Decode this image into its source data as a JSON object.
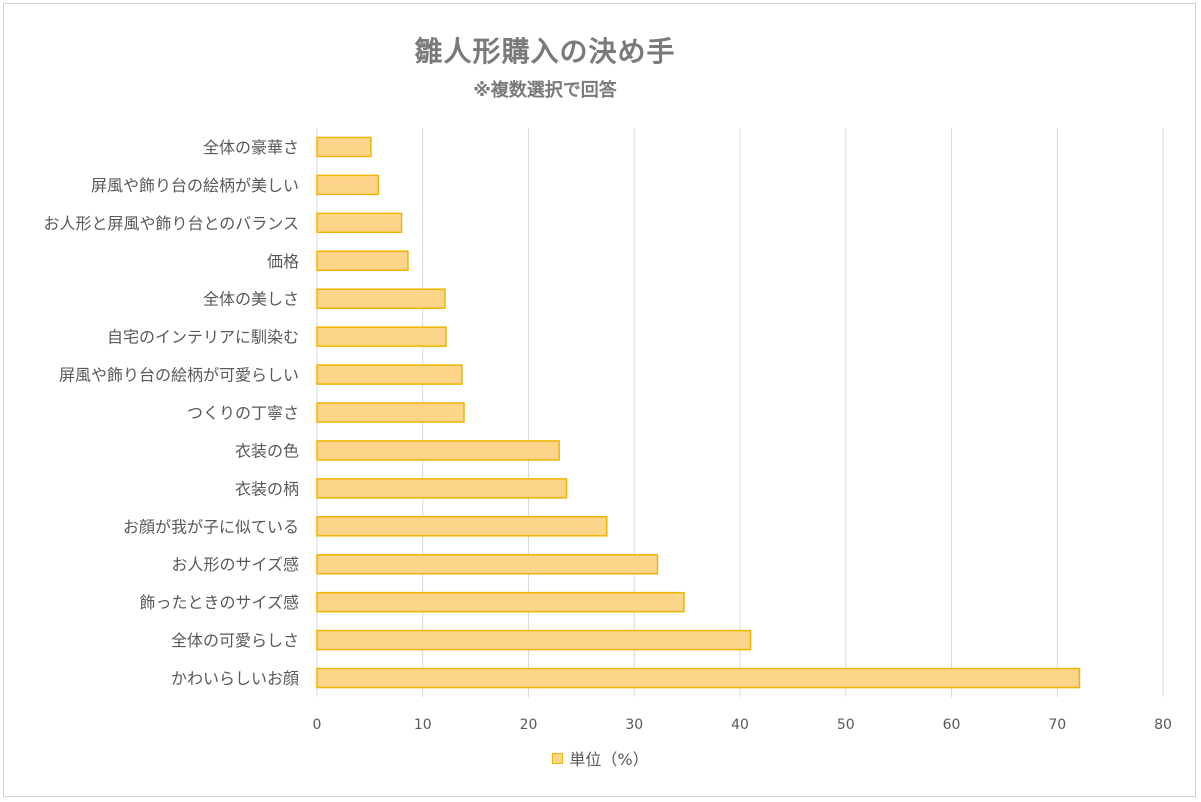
{
  "chart_data": {
    "type": "bar",
    "orientation": "horizontal",
    "title": "雛人形購入の決め手",
    "subtitle": "※複数選択で回答",
    "categories": [
      "全体の豪華さ",
      "屏風や飾り台の絵柄が美しい",
      "お人形と屏風や飾り台とのバランス",
      "価格",
      "全体の美しさ",
      "自宅のインテリアに馴染む",
      "屏風や飾り台の絵柄が可愛らしい",
      "つくりの丁寧さ",
      "衣装の色",
      "衣装の柄",
      "お顔が我が子に似ている",
      "お人形のサイズ感",
      "飾ったときのサイズ感",
      "全体の可愛らしさ",
      "かわいらしいお顔"
    ],
    "series": [
      {
        "name": "単位（%）",
        "values": [
          5.1,
          5.8,
          8.0,
          8.6,
          12.1,
          12.2,
          13.7,
          13.9,
          22.9,
          23.6,
          27.4,
          32.2,
          34.7,
          41.0,
          72.1
        ]
      }
    ],
    "xlim": [
      0,
      80
    ],
    "xticks": [
      0,
      10,
      20,
      30,
      40,
      50,
      60,
      70,
      80
    ],
    "grid": "vertical",
    "legend_position": "bottom",
    "bar_fill": "#fdd58a",
    "bar_stroke": "#f0b400",
    "grid_color": "#d9d9d9"
  }
}
